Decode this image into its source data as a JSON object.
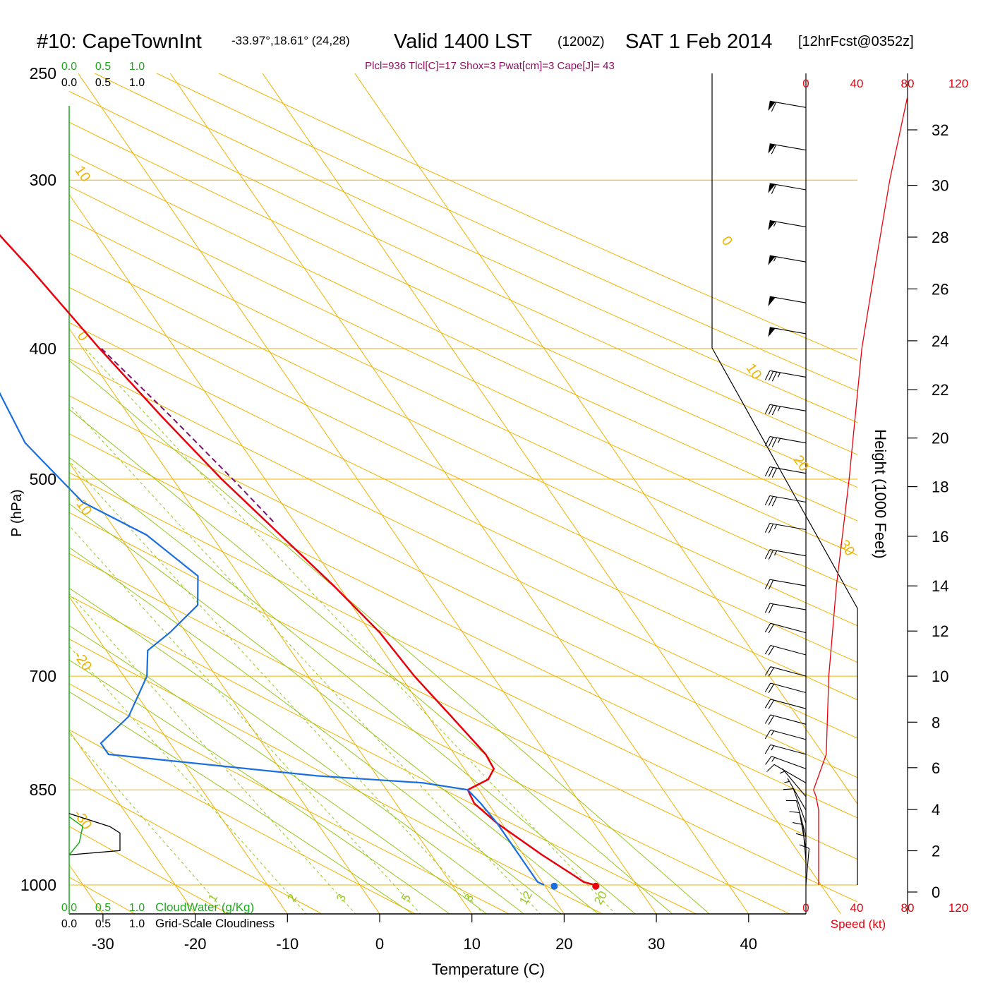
{
  "header": {
    "station": "#10: CapeTownInt",
    "coords": "-33.97°,18.61° (24,28)",
    "valid": "Valid 1400 LST",
    "utc": "(1200Z)",
    "date": "SAT 1 Feb 2014",
    "forecast": "[12hrFcst@0352z]",
    "indices": "Plcl=936 Tlcl[C]=17 Shox=3 Pwat[cm]=3 Cape[J]= 43"
  },
  "colors": {
    "temperature": "#e8000b",
    "dewpoint": "#1a6fe0",
    "parcel": "#7a1470",
    "isotherm": "#f0b400",
    "mixing_ratio": "#96c81e",
    "cloud_water": "#1faa1f",
    "speed": "#e8000b"
  },
  "chart_data": {
    "type": "line",
    "xlabel": "Temperature (C)",
    "ylabel": "P (hPa)",
    "y2label": "Height (1000 Feet)",
    "x_ticks": [
      "-30",
      "-20",
      "-10",
      "0",
      "10",
      "20",
      "30",
      "40"
    ],
    "y_ticks": [
      {
        "p": 250,
        "label": "250"
      },
      {
        "p": 300,
        "label": "300"
      },
      {
        "p": 400,
        "label": "400"
      },
      {
        "p": 500,
        "label": "500"
      },
      {
        "p": 700,
        "label": "700"
      },
      {
        "p": 850,
        "label": "850"
      },
      {
        "p": 1000,
        "label": "1000"
      }
    ],
    "height_ticks": [
      "0",
      "2",
      "4",
      "6",
      "8",
      "10",
      "12",
      "14",
      "16",
      "18",
      "20",
      "22",
      "24",
      "26",
      "28",
      "30",
      "32"
    ],
    "isotherm_labels": [
      "-30",
      "-20",
      "-10",
      "0",
      "10",
      "0",
      "10",
      "20",
      "30"
    ],
    "mixing_ratio_labels": [
      "1",
      "2",
      "3",
      "5",
      "8",
      "12",
      "20"
    ],
    "mixing_ratio_values": [
      1,
      2,
      3,
      5,
      8,
      12,
      20
    ],
    "speed_label": "Speed (kt)",
    "speed_ticks": [
      "0",
      "40",
      "80",
      "120"
    ],
    "cloud_water_label": "CloudWater (g/Kg)",
    "cloud_water_ticks": [
      "0.0",
      "0.5",
      "1.0"
    ],
    "cloudiness_label": "Grid-Scale Cloudiness",
    "cloudiness_ticks": [
      "0.0",
      "0.5",
      "1.0"
    ],
    "series": [
      {
        "name": "temperature",
        "points": [
          [
            1000,
            25.5
          ],
          [
            995,
            24.5
          ],
          [
            985,
            24
          ],
          [
            950,
            22
          ],
          [
            900,
            19.5
          ],
          [
            870,
            18.5
          ],
          [
            850,
            18.8
          ],
          [
            835,
            21.8
          ],
          [
            820,
            23.2
          ],
          [
            800,
            23.4
          ],
          [
            750,
            22.5
          ],
          [
            700,
            21.5
          ],
          [
            650,
            21
          ],
          [
            600,
            19.5
          ],
          [
            550,
            17.5
          ],
          [
            500,
            15.3
          ],
          [
            450,
            13.5
          ],
          [
            400,
            11.8
          ],
          [
            350,
            10.3
          ],
          [
            320,
            9
          ],
          [
            300,
            7.8
          ],
          [
            270,
            6
          ]
        ]
      },
      {
        "name": "dewpoint",
        "points": [
          [
            1000,
            20
          ],
          [
            995,
            19.5
          ],
          [
            950,
            19.5
          ],
          [
            900,
            19.5
          ],
          [
            870,
            19.2
          ],
          [
            850,
            18.8
          ],
          [
            840,
            14.5
          ],
          [
            830,
            3.5
          ],
          [
            800,
            -17.5
          ],
          [
            785,
            -17.5
          ],
          [
            750,
            -12.5
          ],
          [
            700,
            -7.5
          ],
          [
            670,
            -5.5
          ],
          [
            650,
            -1.8
          ],
          [
            620,
            3.3
          ],
          [
            590,
            5.5
          ],
          [
            550,
            3
          ],
          [
            520,
            -1.5
          ],
          [
            470,
            -3.3
          ],
          [
            400,
            -1.5
          ],
          [
            370,
            -1.5
          ],
          [
            340,
            -2.5
          ],
          [
            300,
            -5
          ],
          [
            270,
            -8.5
          ]
        ]
      },
      {
        "name": "parcel",
        "points": [
          [
            400,
            12
          ],
          [
            450,
            14.5
          ],
          [
            500,
            16.5
          ],
          [
            540,
            17.8
          ]
        ]
      }
    ],
    "surface_temperature": 25.5,
    "surface_dewpoint": 21,
    "cloud_water_profile": [
      [
        950,
        0
      ],
      [
        930,
        0.15
      ],
      [
        905,
        0.2
      ],
      [
        890,
        0
      ]
    ],
    "cloudiness_profile": [
      [
        950,
        0
      ],
      [
        943,
        0.75
      ],
      [
        915,
        0.75
      ],
      [
        905,
        0.6
      ],
      [
        885,
        0
      ]
    ],
    "height_kft_at_p": [
      [
        1000,
        0.3
      ],
      [
        950,
        1.8
      ],
      [
        900,
        3.3
      ],
      [
        850,
        5
      ],
      [
        800,
        6.6
      ],
      [
        700,
        10
      ],
      [
        600,
        14
      ],
      [
        500,
        18.3
      ],
      [
        400,
        23.7
      ],
      [
        300,
        30.2
      ],
      [
        265,
        32.8
      ]
    ],
    "wind_speed_profile_kt": [
      [
        1000,
        10
      ],
      [
        950,
        10
      ],
      [
        900,
        10
      ],
      [
        880,
        10
      ],
      [
        860,
        8
      ],
      [
        850,
        6
      ],
      [
        800,
        16
      ],
      [
        700,
        18
      ],
      [
        600,
        24
      ],
      [
        500,
        34
      ],
      [
        400,
        44
      ],
      [
        350,
        54
      ],
      [
        300,
        66
      ],
      [
        260,
        80
      ]
    ],
    "wind_barbs": [
      {
        "p": 265,
        "dir": 280,
        "spd": 60
      },
      {
        "p": 285,
        "dir": 280,
        "spd": 60
      },
      {
        "p": 305,
        "dir": 280,
        "spd": 60
      },
      {
        "p": 325,
        "dir": 280,
        "spd": 55
      },
      {
        "p": 345,
        "dir": 280,
        "spd": 55
      },
      {
        "p": 370,
        "dir": 280,
        "spd": 50
      },
      {
        "p": 390,
        "dir": 280,
        "spd": 50
      },
      {
        "p": 420,
        "dir": 280,
        "spd": 35
      },
      {
        "p": 445,
        "dir": 280,
        "spd": 35
      },
      {
        "p": 470,
        "dir": 280,
        "spd": 35
      },
      {
        "p": 495,
        "dir": 280,
        "spd": 30
      },
      {
        "p": 520,
        "dir": 280,
        "spd": 30
      },
      {
        "p": 545,
        "dir": 280,
        "spd": 25
      },
      {
        "p": 570,
        "dir": 280,
        "spd": 25
      },
      {
        "p": 600,
        "dir": 280,
        "spd": 20
      },
      {
        "p": 625,
        "dir": 280,
        "spd": 20
      },
      {
        "p": 650,
        "dir": 285,
        "spd": 20
      },
      {
        "p": 675,
        "dir": 285,
        "spd": 20
      },
      {
        "p": 700,
        "dir": 285,
        "spd": 20
      },
      {
        "p": 720,
        "dir": 285,
        "spd": 20
      },
      {
        "p": 740,
        "dir": 285,
        "spd": 20
      },
      {
        "p": 760,
        "dir": 285,
        "spd": 20
      },
      {
        "p": 780,
        "dir": 285,
        "spd": 15
      },
      {
        "p": 800,
        "dir": 285,
        "spd": 15
      },
      {
        "p": 820,
        "dir": 290,
        "spd": 15
      },
      {
        "p": 840,
        "dir": 300,
        "spd": 10
      },
      {
        "p": 860,
        "dir": 320,
        "spd": 5
      },
      {
        "p": 880,
        "dir": 330,
        "spd": 5
      },
      {
        "p": 900,
        "dir": 340,
        "spd": 10
      },
      {
        "p": 920,
        "dir": 345,
        "spd": 10
      },
      {
        "p": 940,
        "dir": 350,
        "spd": 10
      },
      {
        "p": 960,
        "dir": 355,
        "spd": 10
      },
      {
        "p": 980,
        "dir": 0,
        "spd": 10
      },
      {
        "p": 1000,
        "dir": 5,
        "spd": 10
      }
    ]
  }
}
